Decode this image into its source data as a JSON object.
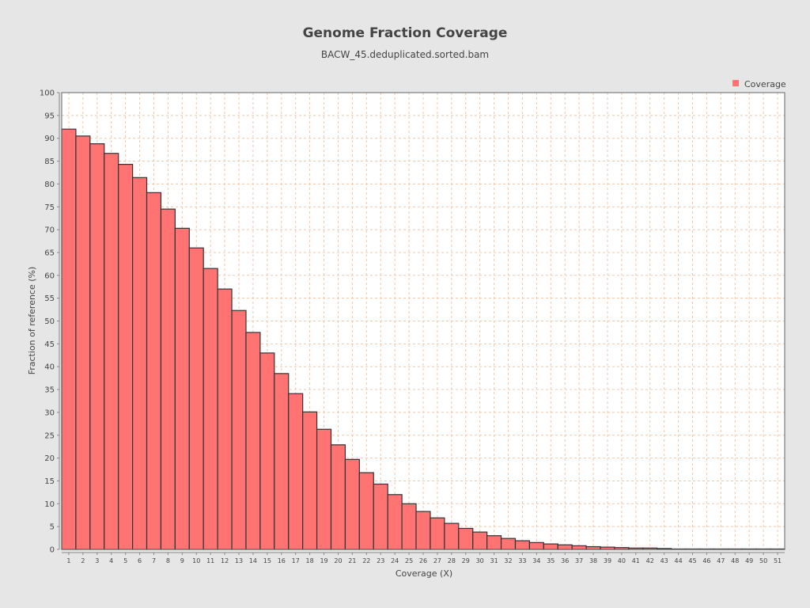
{
  "chart_data": {
    "type": "bar",
    "title": "Genome Fraction Coverage",
    "subtitle": "BACW_45.deduplicated.sorted.bam",
    "xlabel": "Coverage (X)",
    "ylabel": "Fraction of reference (%)",
    "ylim": [
      0,
      100
    ],
    "yticks": [
      0,
      5,
      10,
      15,
      20,
      25,
      30,
      35,
      40,
      45,
      50,
      55,
      60,
      65,
      70,
      75,
      80,
      85,
      90,
      95,
      100
    ],
    "categories": [
      "1",
      "2",
      "3",
      "4",
      "5",
      "6",
      "7",
      "8",
      "9",
      "10",
      "11",
      "12",
      "13",
      "14",
      "15",
      "16",
      "17",
      "18",
      "19",
      "20",
      "21",
      "22",
      "23",
      "24",
      "25",
      "26",
      "27",
      "28",
      "29",
      "30",
      "31",
      "32",
      "33",
      "34",
      "35",
      "36",
      "37",
      "38",
      "39",
      "40",
      "41",
      "42",
      "43",
      "44",
      "45",
      "46",
      "47",
      "48",
      "49",
      "50",
      "51"
    ],
    "series": [
      {
        "name": "Coverage",
        "color": "#ff7373",
        "values": [
          92.0,
          90.5,
          88.8,
          86.7,
          84.3,
          81.4,
          78.1,
          74.5,
          70.3,
          66.0,
          61.5,
          57.0,
          52.3,
          47.5,
          43.0,
          38.5,
          34.1,
          30.1,
          26.3,
          22.9,
          19.7,
          16.8,
          14.3,
          12.0,
          10.0,
          8.3,
          6.9,
          5.7,
          4.6,
          3.8,
          3.0,
          2.4,
          1.9,
          1.5,
          1.2,
          1.0,
          0.8,
          0.6,
          0.5,
          0.4,
          0.3,
          0.3,
          0.2,
          0.1,
          0.1,
          0.1,
          0.1,
          0.1,
          0.1,
          0.1,
          0.1
        ]
      }
    ],
    "grid": true,
    "legend_position": "top-right",
    "colors": {
      "background": "#e6e6e6",
      "plot_background": "#ffffff",
      "grid": "#f0c8a8",
      "bar_edge": "#333333",
      "text": "#444444"
    }
  }
}
